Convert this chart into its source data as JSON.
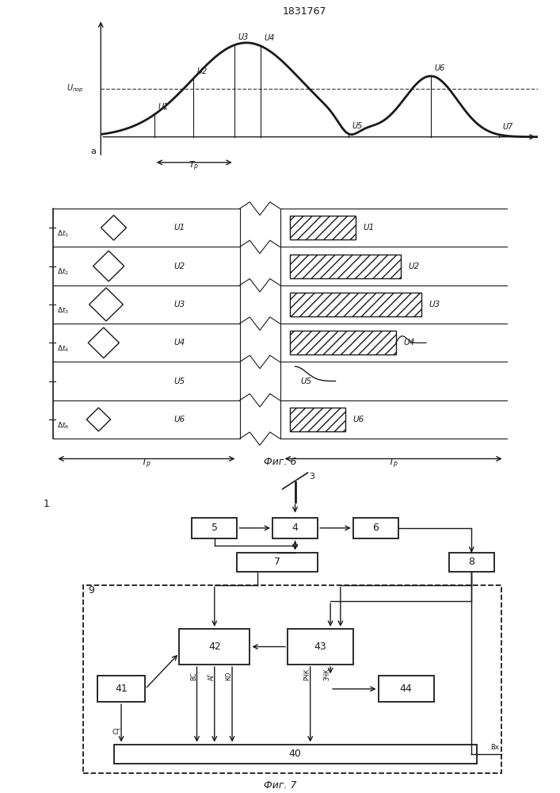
{
  "title": "1831767",
  "fig6_label": "Фиг. 6",
  "fig7_label": "Фиг. 7",
  "line_color": "#1a1a1a"
}
